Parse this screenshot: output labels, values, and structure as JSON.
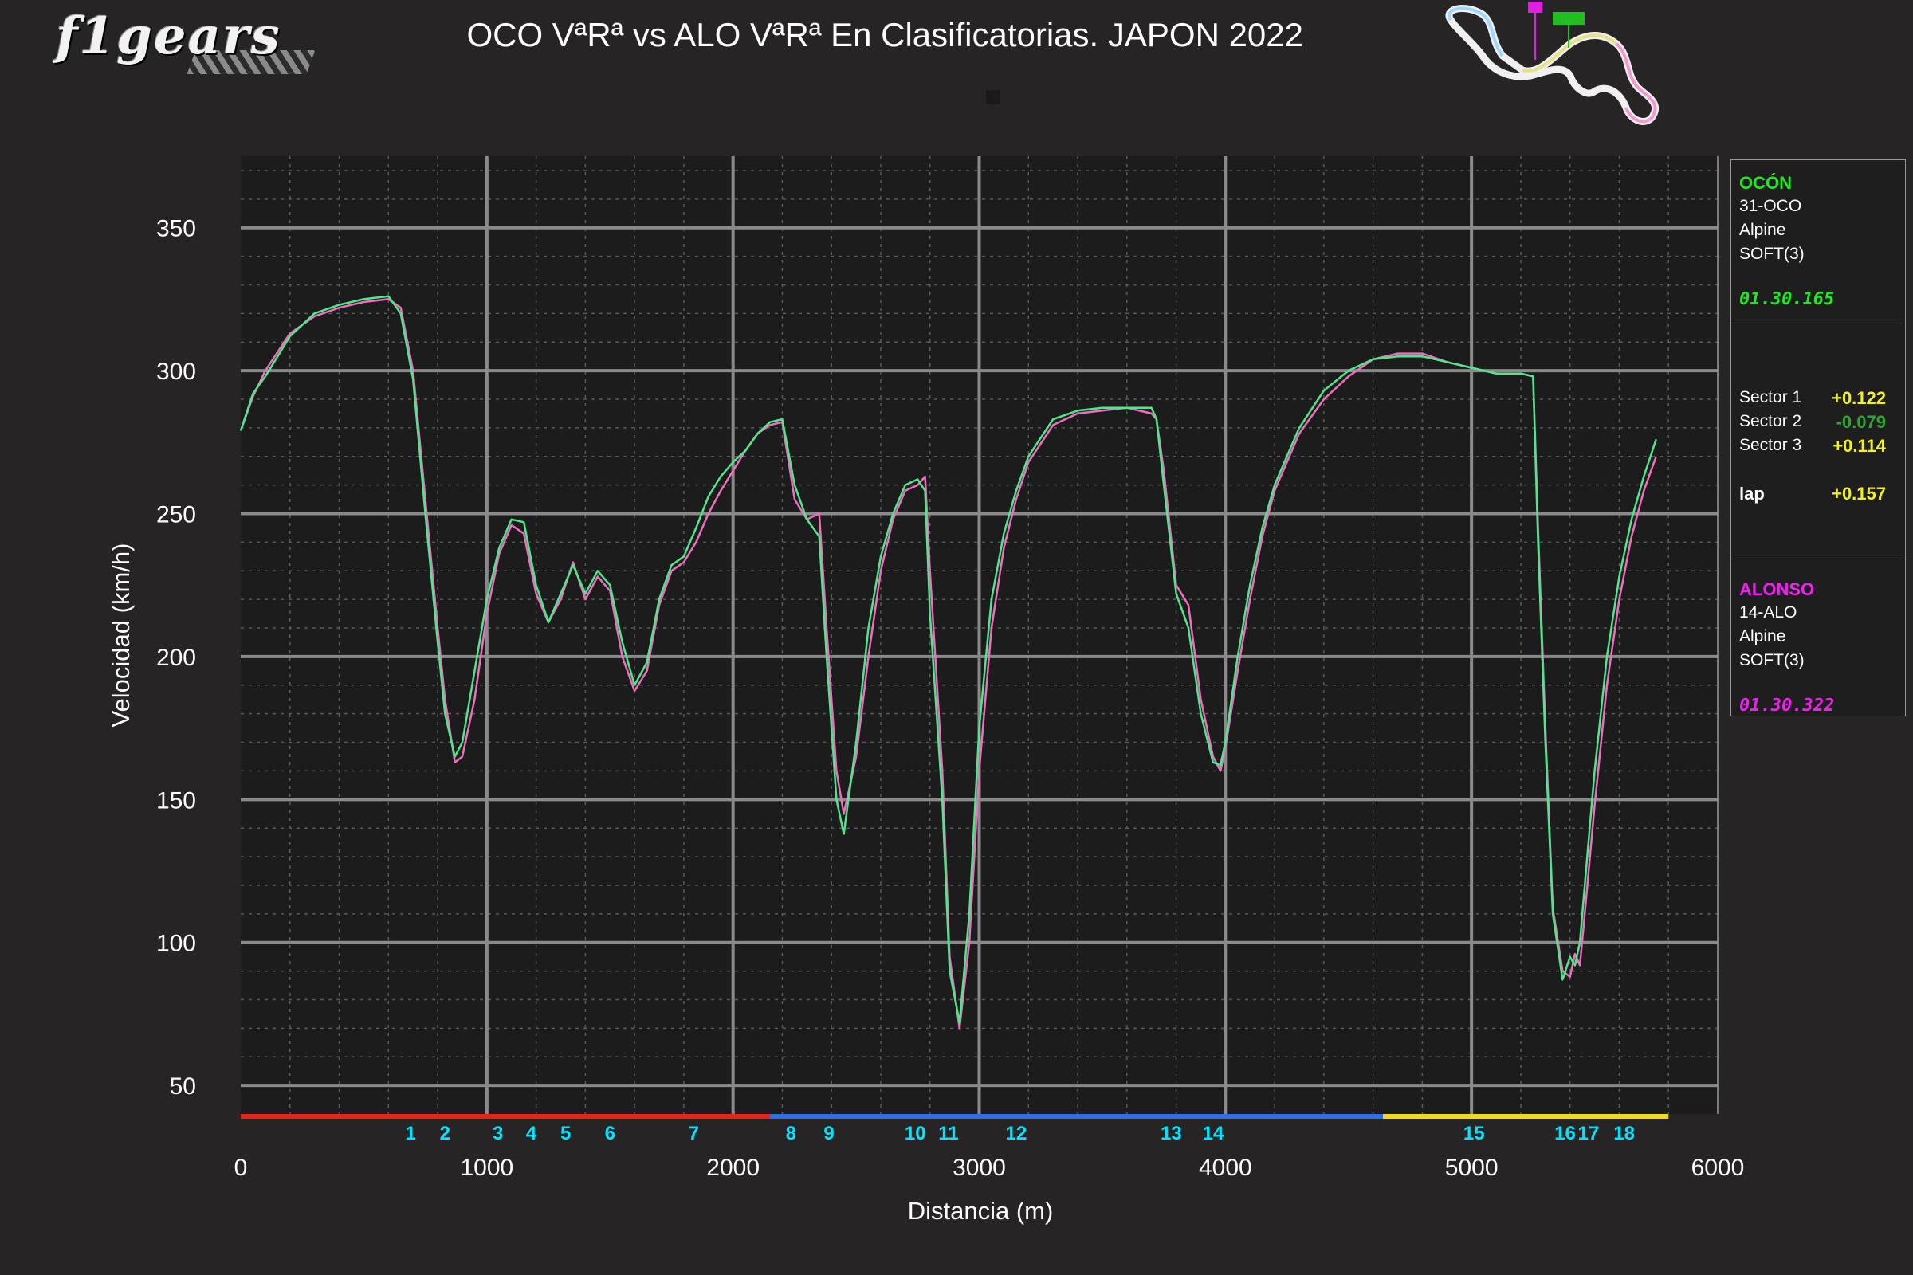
{
  "branding": {
    "logo_text": "f1gears"
  },
  "title": "OCO VªRª vs ALO VªRª En Clasificatorias. JAPON 2022",
  "colors": {
    "oco": "#4ee88a",
    "alo": "#ee6fc0",
    "sector1": "#e8231d",
    "sector2": "#2f6fe0",
    "sector3": "#f2d91a",
    "corner_labels": "#00e5ff"
  },
  "chart_data": {
    "type": "line",
    "xlabel": "Distancia (m)",
    "ylabel": "Velocidad (km/h)",
    "xlim": [
      0,
      6000
    ],
    "ylim": [
      40,
      375
    ],
    "xticks": [
      0,
      1000,
      2000,
      3000,
      4000,
      5000,
      6000
    ],
    "yticks": [
      50,
      100,
      150,
      200,
      250,
      300,
      350
    ],
    "grid": true,
    "series": [
      {
        "name": "OCO",
        "color": "#4ee88a",
        "x": [
          0,
          50,
          100,
          200,
          300,
          400,
          500,
          600,
          650,
          700,
          750,
          800,
          830,
          870,
          900,
          950,
          1000,
          1050,
          1100,
          1150,
          1200,
          1250,
          1300,
          1350,
          1400,
          1450,
          1500,
          1550,
          1600,
          1650,
          1700,
          1750,
          1800,
          1850,
          1900,
          1950,
          2000,
          2050,
          2100,
          2150,
          2200,
          2250,
          2300,
          2350,
          2380,
          2420,
          2450,
          2500,
          2550,
          2600,
          2650,
          2700,
          2750,
          2780,
          2800,
          2850,
          2880,
          2920,
          2960,
          3000,
          3050,
          3100,
          3150,
          3200,
          3300,
          3400,
          3500,
          3600,
          3700,
          3720,
          3750,
          3800,
          3850,
          3900,
          3950,
          3980,
          4000,
          4050,
          4100,
          4150,
          4200,
          4300,
          4400,
          4500,
          4600,
          4700,
          4800,
          4900,
          5000,
          5100,
          5200,
          5250,
          5270,
          5300,
          5330,
          5370,
          5400,
          5420,
          5440,
          5460,
          5500,
          5550,
          5600,
          5650,
          5700,
          5750
        ],
        "y": [
          279,
          292,
          298,
          312,
          320,
          323,
          325,
          326,
          320,
          297,
          250,
          205,
          180,
          165,
          170,
          195,
          220,
          238,
          248,
          247,
          225,
          212,
          222,
          232,
          222,
          230,
          225,
          205,
          190,
          198,
          220,
          232,
          235,
          245,
          256,
          263,
          268,
          272,
          278,
          282,
          283,
          260,
          248,
          242,
          200,
          150,
          138,
          170,
          210,
          235,
          250,
          260,
          262,
          258,
          215,
          150,
          90,
          72,
          110,
          175,
          220,
          243,
          258,
          270,
          283,
          286,
          287,
          287,
          287,
          283,
          260,
          222,
          210,
          180,
          163,
          162,
          170,
          200,
          225,
          245,
          260,
          280,
          293,
          300,
          304,
          305,
          305,
          303,
          301,
          299,
          299,
          298,
          240,
          170,
          110,
          87,
          95,
          92,
          100,
          120,
          160,
          200,
          228,
          248,
          263,
          276
        ]
      },
      {
        "name": "ALO",
        "color": "#ee6fc0",
        "x": [
          0,
          50,
          100,
          200,
          300,
          400,
          500,
          600,
          650,
          700,
          750,
          800,
          830,
          870,
          900,
          950,
          1000,
          1050,
          1100,
          1150,
          1200,
          1250,
          1300,
          1350,
          1400,
          1450,
          1500,
          1550,
          1600,
          1650,
          1700,
          1750,
          1800,
          1850,
          1900,
          1950,
          2000,
          2050,
          2100,
          2150,
          2200,
          2250,
          2300,
          2350,
          2380,
          2420,
          2450,
          2500,
          2550,
          2600,
          2650,
          2700,
          2750,
          2780,
          2800,
          2850,
          2880,
          2920,
          2960,
          3000,
          3050,
          3100,
          3150,
          3200,
          3300,
          3400,
          3500,
          3600,
          3700,
          3720,
          3750,
          3800,
          3850,
          3900,
          3950,
          3980,
          4000,
          4050,
          4100,
          4150,
          4200,
          4300,
          4400,
          4500,
          4600,
          4700,
          4800,
          4900,
          5000,
          5100,
          5200,
          5250,
          5270,
          5300,
          5330,
          5370,
          5400,
          5420,
          5440,
          5460,
          5500,
          5550,
          5600,
          5650,
          5700,
          5750
        ],
        "y": [
          279,
          291,
          300,
          313,
          319,
          322,
          324,
          325,
          322,
          300,
          255,
          210,
          185,
          163,
          165,
          185,
          215,
          236,
          246,
          243,
          222,
          212,
          220,
          233,
          220,
          228,
          223,
          200,
          188,
          195,
          218,
          230,
          233,
          240,
          250,
          258,
          265,
          272,
          278,
          281,
          282,
          255,
          248,
          250,
          210,
          160,
          145,
          165,
          200,
          230,
          248,
          258,
          260,
          263,
          230,
          160,
          95,
          70,
          100,
          160,
          210,
          238,
          255,
          268,
          281,
          285,
          286,
          287,
          285,
          283,
          265,
          225,
          218,
          185,
          165,
          160,
          168,
          195,
          220,
          242,
          258,
          278,
          290,
          298,
          304,
          306,
          306,
          303,
          301,
          299,
          299,
          298,
          245,
          175,
          112,
          90,
          88,
          96,
          92,
          110,
          148,
          190,
          220,
          242,
          258,
          270
        ]
      }
    ],
    "sectors": [
      {
        "name": "Sector 1",
        "start": 0,
        "end": 2150,
        "color": "#e8231d"
      },
      {
        "name": "Sector 2",
        "start": 2150,
        "end": 4640,
        "color": "#2f6fe0"
      },
      {
        "name": "Sector 3",
        "start": 4640,
        "end": 5800,
        "color": "#f2d91a"
      }
    ],
    "corners": [
      {
        "label": "1",
        "x": 690
      },
      {
        "label": "2",
        "x": 830
      },
      {
        "label": "3",
        "x": 1045
      },
      {
        "label": "4",
        "x": 1180
      },
      {
        "label": "5",
        "x": 1320
      },
      {
        "label": "6",
        "x": 1500
      },
      {
        "label": "7",
        "x": 1840
      },
      {
        "label": "8",
        "x": 2235
      },
      {
        "label": "9",
        "x": 2390
      },
      {
        "label": "10",
        "x": 2740
      },
      {
        "label": "11",
        "x": 2875
      },
      {
        "label": "12",
        "x": 3150
      },
      {
        "label": "13",
        "x": 3780
      },
      {
        "label": "14",
        "x": 3950
      },
      {
        "label": "15",
        "x": 5010
      },
      {
        "label": "16",
        "x": 5380
      },
      {
        "label": "17",
        "x": 5475
      },
      {
        "label": "18",
        "x": 5620
      }
    ]
  },
  "panel": {
    "oco": {
      "name": "OCÓN",
      "code": "31-OCO",
      "team": "Alpine",
      "tyre": "SOFT(3)",
      "lap_time": "01.30.165"
    },
    "deltas": [
      {
        "label": "Sector 1",
        "value": "+0.122",
        "color": "#f2f21a"
      },
      {
        "label": "Sector 2",
        "value": "-0.079",
        "color": "#2ea52e"
      },
      {
        "label": "Sector 3",
        "value": "+0.114",
        "color": "#f2f21a"
      }
    ],
    "lap": {
      "label": "lap",
      "value": "+0.157",
      "color": "#f2f21a"
    },
    "alo": {
      "name": "ALONSO",
      "code": "14-ALO",
      "team": "Alpine",
      "tyre": "SOFT(3)",
      "lap_time": "01.30.322"
    }
  }
}
